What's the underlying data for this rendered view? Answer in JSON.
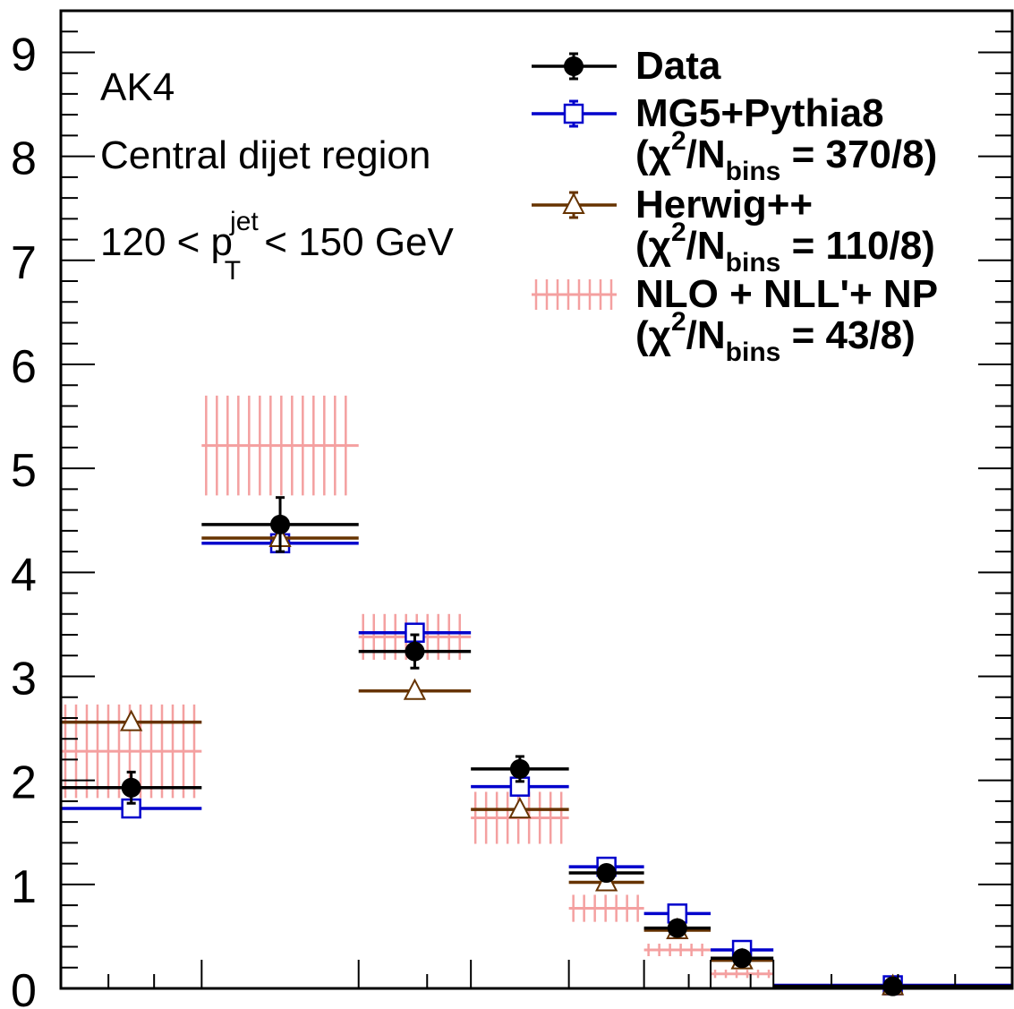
{
  "chart_data": {
    "type": "scatter",
    "ylim": [
      0,
      9.4
    ],
    "y_ticks": [
      "0",
      "1",
      "2",
      "3",
      "4",
      "5",
      "6",
      "7",
      "8",
      "9"
    ],
    "annotations": {
      "line1": "AK4",
      "line2": "Central dijet region",
      "line3_pre": "120 < p",
      "line3_sup": "jet",
      "line3_sub": "T",
      "line3_post": " < 150 GeV"
    },
    "bins": [
      {
        "lo": 0.0,
        "hi": 0.148
      },
      {
        "lo": 0.148,
        "hi": 0.313
      },
      {
        "lo": 0.313,
        "hi": 0.431
      },
      {
        "lo": 0.431,
        "hi": 0.534
      },
      {
        "lo": 0.534,
        "hi": 0.613
      },
      {
        "lo": 0.613,
        "hi": 0.683
      },
      {
        "lo": 0.683,
        "hi": 0.749
      },
      {
        "lo": 0.749,
        "hi": 1.0
      }
    ],
    "series": [
      {
        "name": "NLO + NLL'+ NP",
        "chi2": "43/8",
        "marker": "band",
        "color": "#f4a0a0",
        "values": [
          2.28,
          5.22,
          3.38,
          1.64,
          0.77,
          0.37,
          0.14,
          0.01
        ],
        "errors": [
          0.45,
          0.48,
          0.22,
          0.25,
          0.13,
          0.06,
          0.04,
          0.01
        ]
      },
      {
        "name": "MG5+Pythia8",
        "chi2": "370/8",
        "marker": "open-square",
        "color": "#0000cc",
        "values": [
          1.73,
          4.28,
          3.42,
          1.94,
          1.17,
          0.72,
          0.37,
          0.03
        ],
        "errors": [
          0.02,
          0.03,
          0.03,
          0.02,
          0.02,
          0.02,
          0.01,
          0.01
        ]
      },
      {
        "name": "Herwig++",
        "chi2": "110/8",
        "marker": "open-triangle",
        "color": "#663300",
        "values": [
          2.56,
          4.33,
          2.86,
          1.72,
          1.02,
          0.56,
          0.27,
          0.02
        ],
        "errors": [
          0.02,
          0.03,
          0.02,
          0.02,
          0.02,
          0.01,
          0.01,
          0.01
        ]
      },
      {
        "name": "Data",
        "chi2": "",
        "marker": "filled-circle",
        "color": "#000000",
        "values": [
          1.93,
          4.46,
          3.24,
          2.11,
          1.11,
          0.58,
          0.29,
          0.02
        ],
        "errors": [
          0.15,
          0.26,
          0.16,
          0.12,
          0.06,
          0.04,
          0.02,
          0.01
        ]
      }
    ],
    "legend": {
      "placement": "top-right",
      "chi2_prefix": "(χ",
      "chi2_sup": "2",
      "chi2_mid": "/N",
      "chi2_sub": "bins",
      "chi2_eq": " = ",
      "chi2_close": ")"
    }
  }
}
